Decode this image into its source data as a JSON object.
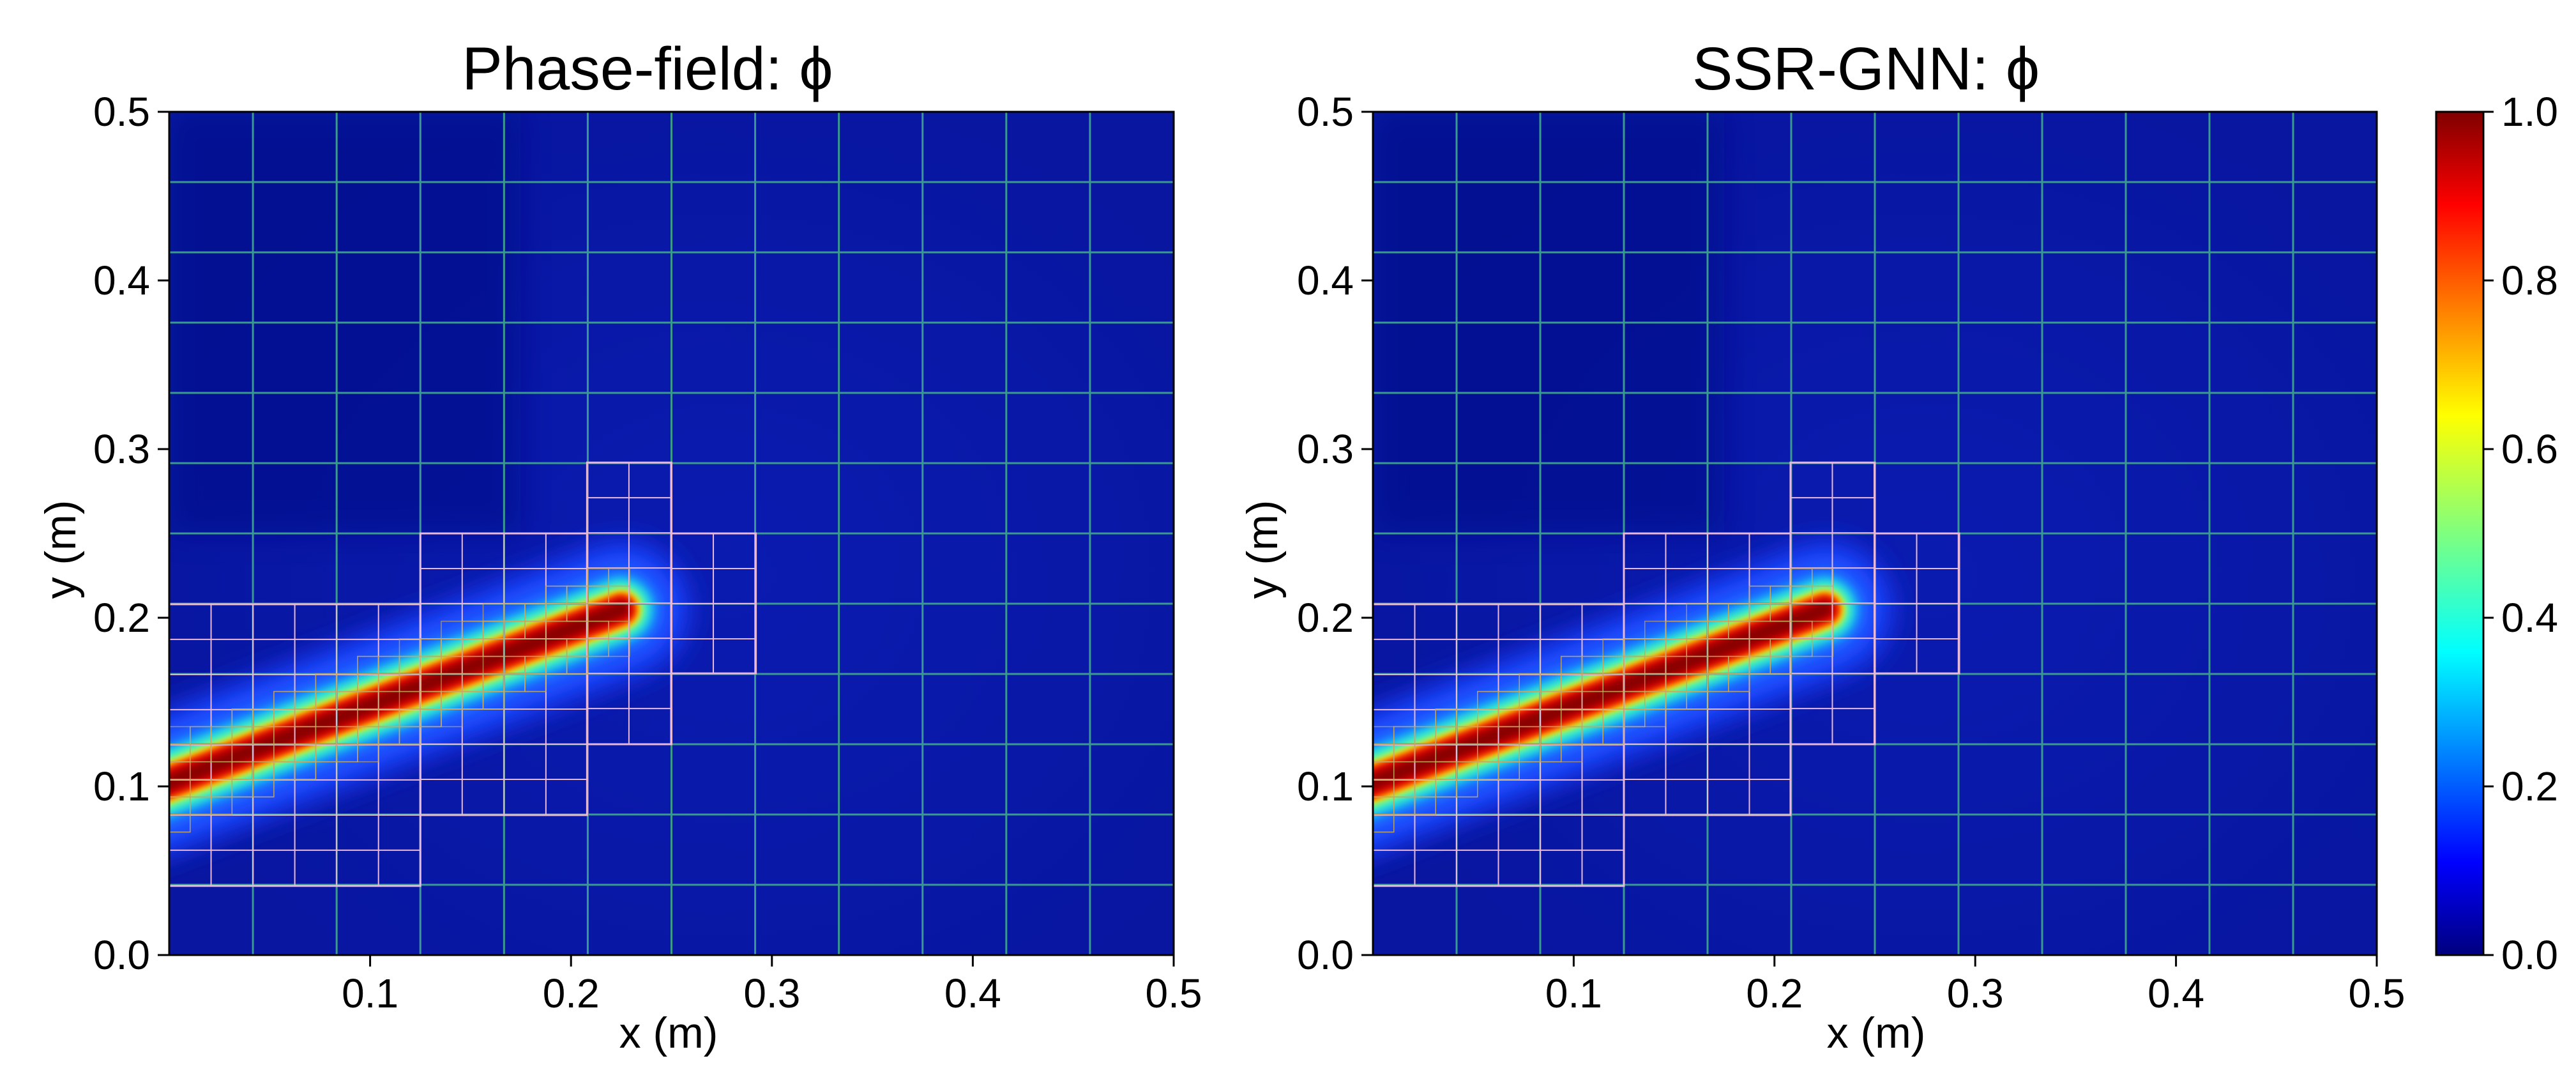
{
  "chart_data": [
    {
      "type": "heatmap",
      "title": "Phase-field: ϕ",
      "xlabel": "x (m)",
      "ylabel": "y (m)",
      "xlim": [
        0.0,
        0.5
      ],
      "ylim": [
        0.0,
        0.5
      ],
      "xticks": [
        "0.1",
        "0.2",
        "0.3",
        "0.4",
        "0.5"
      ],
      "yticks": [
        "0.0",
        "0.1",
        "0.2",
        "0.3",
        "0.4",
        "0.5"
      ],
      "crack": {
        "start": [
          0.0,
          0.1
        ],
        "end": [
          0.225,
          0.205
        ],
        "peak_value": 1.0
      },
      "background_value": 0.05,
      "coarse_mesh": {
        "nx": 12,
        "ny": 12
      },
      "refined_patches": [
        {
          "x": [
            0.0,
            0.125
          ],
          "y": [
            0.041,
            0.208
          ],
          "level": 1
        },
        {
          "x": [
            0.125,
            0.208
          ],
          "y": [
            0.083,
            0.25
          ],
          "level": 1
        },
        {
          "x": [
            0.208,
            0.25
          ],
          "y": [
            0.125,
            0.292
          ],
          "level": 1
        },
        {
          "x": [
            0.25,
            0.292
          ],
          "y": [
            0.167,
            0.25
          ],
          "level": 1
        }
      ]
    },
    {
      "type": "heatmap",
      "title": "SSR-GNN: ϕ",
      "xlabel": "x (m)",
      "ylabel": "y (m)",
      "xlim": [
        0.0,
        0.5
      ],
      "ylim": [
        0.0,
        0.5
      ],
      "xticks": [
        "0.1",
        "0.2",
        "0.3",
        "0.4",
        "0.5"
      ],
      "yticks": [
        "0.0",
        "0.1",
        "0.2",
        "0.3",
        "0.4",
        "0.5"
      ],
      "crack": {
        "start": [
          0.0,
          0.1
        ],
        "end": [
          0.225,
          0.205
        ],
        "peak_value": 1.0
      },
      "background_value": 0.05,
      "coarse_mesh": {
        "nx": 12,
        "ny": 12
      },
      "refined_patches": [
        {
          "x": [
            0.0,
            0.125
          ],
          "y": [
            0.041,
            0.208
          ],
          "level": 1
        },
        {
          "x": [
            0.125,
            0.208
          ],
          "y": [
            0.083,
            0.25
          ],
          "level": 1
        },
        {
          "x": [
            0.208,
            0.25
          ],
          "y": [
            0.125,
            0.292
          ],
          "level": 1
        },
        {
          "x": [
            0.25,
            0.292
          ],
          "y": [
            0.167,
            0.25
          ],
          "level": 1
        }
      ]
    }
  ],
  "colorbar": {
    "colormap": "jet",
    "range": [
      0.0,
      1.0
    ],
    "ticks": [
      "0.0",
      "0.2",
      "0.4",
      "0.6",
      "0.8",
      "1.0"
    ]
  },
  "colors": {
    "jet_stops": [
      "#00007f",
      "#0000ff",
      "#00ffff",
      "#7fff7f",
      "#ffff00",
      "#ff0000",
      "#7f0000"
    ],
    "coarse_mesh": "#3a9a8e",
    "fine_mesh": "#e8b8d8",
    "finest_mesh": "#c8a860"
  }
}
